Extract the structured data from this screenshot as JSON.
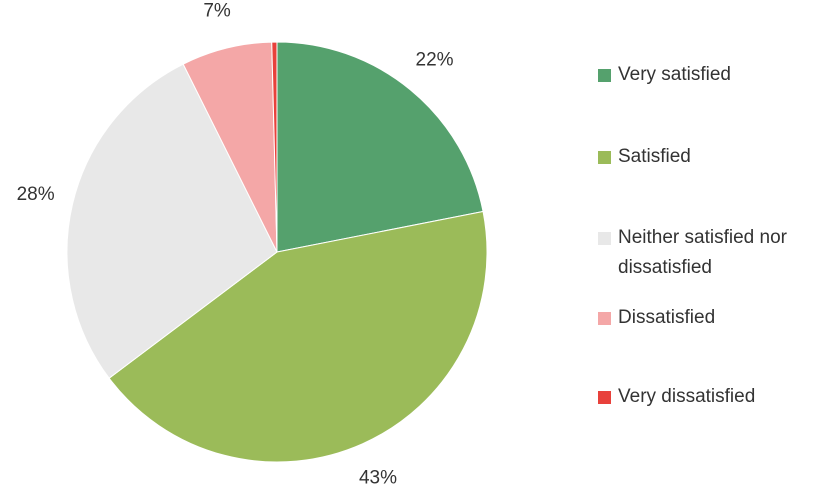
{
  "chart_data": {
    "type": "pie",
    "categories": [
      "Very satisfied",
      "Satisfied",
      "Neither satisfied nor dissatisfied",
      "Dissatisfied",
      "Very dissatisfied"
    ],
    "values": [
      22,
      43,
      28,
      7,
      0.4
    ],
    "value_labels": [
      "22%",
      "43%",
      "28%",
      "7%",
      null
    ],
    "colors": [
      "#55a16d",
      "#9bbb59",
      "#e8e8e8",
      "#f4a7a7",
      "#e8413b"
    ],
    "legend": "right"
  }
}
